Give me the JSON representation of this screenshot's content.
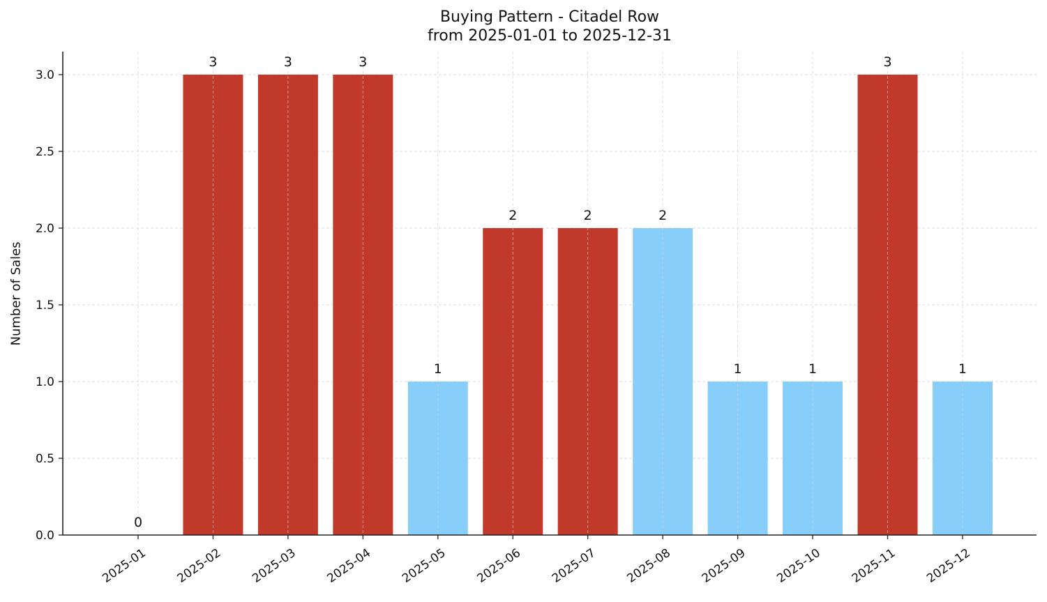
{
  "chart_data": {
    "type": "bar",
    "title": "Buying Pattern - Citadel Row",
    "subtitle": "from 2025-01-01 to 2025-12-31",
    "xlabel": "",
    "ylabel": "Number of Sales",
    "categories": [
      "2025-01",
      "2025-02",
      "2025-03",
      "2025-04",
      "2025-05",
      "2025-06",
      "2025-07",
      "2025-08",
      "2025-09",
      "2025-10",
      "2025-11",
      "2025-12"
    ],
    "values": [
      0,
      3,
      3,
      3,
      1,
      2,
      2,
      2,
      1,
      1,
      3,
      1
    ],
    "bar_colors": [
      "#87CEFA",
      "#C0392B",
      "#C0392B",
      "#C0392B",
      "#87CEFA",
      "#C0392B",
      "#C0392B",
      "#87CEFA",
      "#87CEFA",
      "#87CEFA",
      "#C0392B",
      "#87CEFA"
    ],
    "data_labels": [
      "0",
      "3",
      "3",
      "3",
      "1",
      "2",
      "2",
      "2",
      "1",
      "1",
      "3",
      "1"
    ],
    "yticks": [
      "0.0",
      "0.5",
      "1.0",
      "1.5",
      "2.0",
      "2.5",
      "3.0"
    ],
    "ylim": [
      0,
      3.15
    ],
    "grid": true,
    "legend": null,
    "colors": {
      "high": "#C0392B",
      "low": "#87CEFA",
      "grid": "#d0d0d0",
      "axis": "#222222"
    }
  }
}
